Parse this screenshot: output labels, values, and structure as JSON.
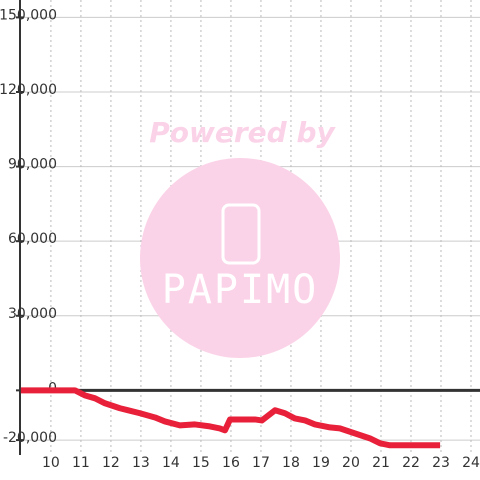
{
  "chart_data": {
    "type": "line",
    "watermark": {
      "line1": "Powered by",
      "line2": "PAPIMO"
    },
    "x": [
      9,
      10.8,
      11.13,
      11.47,
      11.8,
      12.3,
      12.97,
      13.47,
      13.8,
      14.3,
      14.8,
      15.3,
      15.63,
      15.8,
      15.97,
      16.8,
      17.03,
      17.47,
      17.8,
      18.13,
      18.47,
      18.8,
      19.3,
      19.63,
      20.13,
      20.63,
      20.97,
      21.3,
      22.97
    ],
    "series": [
      {
        "color": "#e8203a",
        "values": [
          0,
          0,
          -2000,
          -3200,
          -5200,
          -7200,
          -9200,
          -10900,
          -12500,
          -14100,
          -13700,
          -14500,
          -15300,
          -16100,
          -11700,
          -11700,
          -12100,
          -8000,
          -9200,
          -11300,
          -12100,
          -13700,
          -14900,
          -15300,
          -17300,
          -19300,
          -21300,
          -22100,
          -22100
        ]
      }
    ],
    "xlim": [
      8.97,
      24.3
    ],
    "xticks": [
      10,
      11,
      12,
      13,
      14,
      15,
      16,
      17,
      18,
      19,
      20,
      21,
      22,
      23,
      24
    ],
    "ylim": [
      -26000,
      157000
    ],
    "yticks": [
      {
        "value": -20000,
        "label": "-20,000"
      },
      0,
      {
        "value": 30000,
        "label": "30,000"
      },
      {
        "value": 60000,
        "label": "60,000"
      },
      {
        "value": 90000,
        "label": "90,000"
      },
      {
        "value": 120000,
        "label": "120,000"
      },
      {
        "value": 150000,
        "label": "150,000"
      }
    ],
    "grid": true
  }
}
